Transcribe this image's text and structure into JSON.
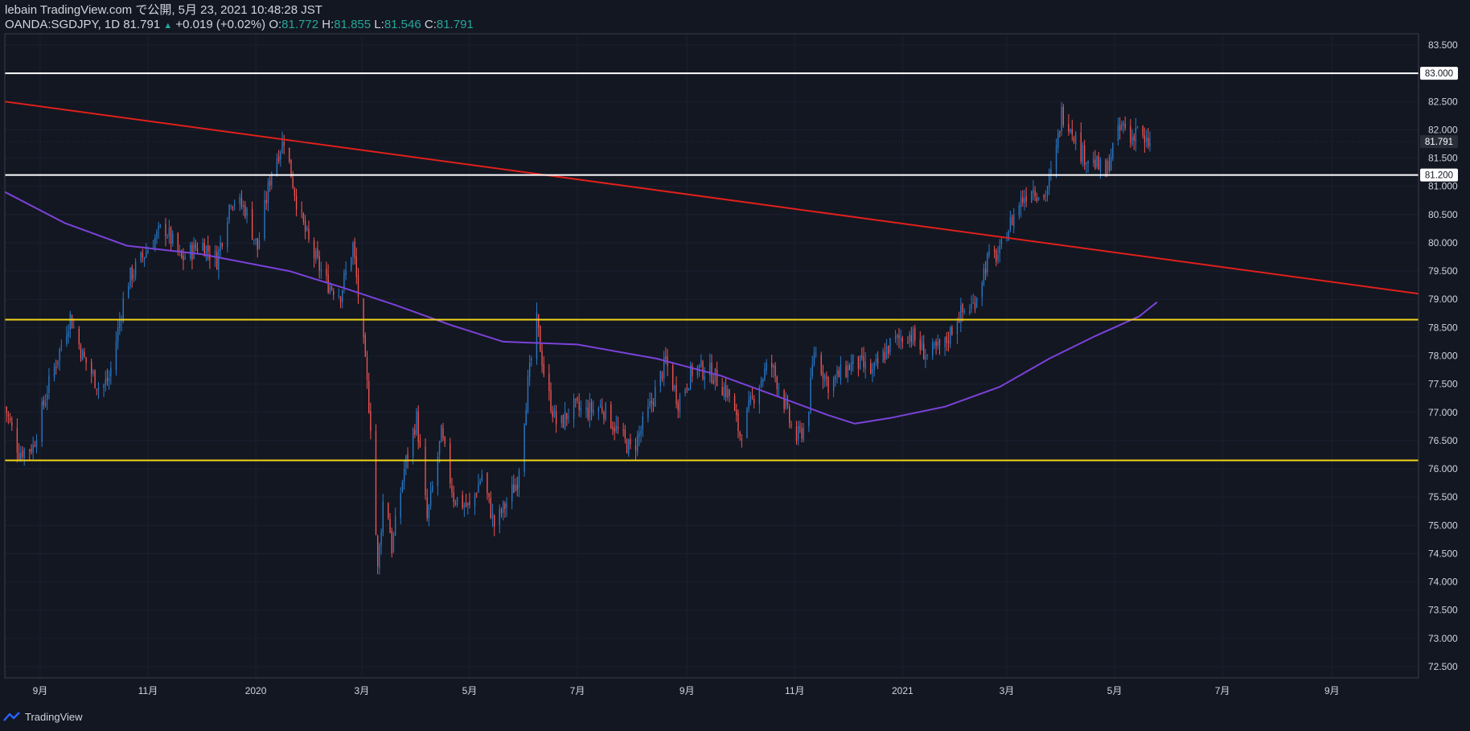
{
  "header": {
    "line1": "lebain TradingView.com で公開, 5月 23, 2021 10:48:28 JST",
    "symbol": "OANDA:SGDJPY, 1D",
    "last": "81.791",
    "change": "+0.019 (+0.02%)",
    "o_label": "O:",
    "o": "81.772",
    "h_label": "H:",
    "h": "81.855",
    "l_label": "L:",
    "l": "81.546",
    "c_label": "C:",
    "c": "81.791"
  },
  "footer": {
    "brand": "TradingView"
  },
  "colors": {
    "bg": "#131722",
    "up": "#2979c8",
    "down": "#ef5350",
    "trendline": "#e0201a",
    "support": "#f0d419",
    "resistance": "#ffffff",
    "ma": "#7b42d9",
    "axis_text": "#d1d4dc"
  },
  "chart_data": {
    "type": "candlestick",
    "symbol": "OANDA:SGDJPY",
    "timeframe": "1D",
    "ylim": [
      72.3,
      83.7
    ],
    "y_ticks": [
      "72.500",
      "73.000",
      "73.500",
      "74.000",
      "74.500",
      "75.000",
      "75.500",
      "76.000",
      "76.500",
      "77.000",
      "77.500",
      "78.000",
      "78.500",
      "79.000",
      "79.500",
      "80.000",
      "80.500",
      "81.000",
      "81.500",
      "82.000",
      "82.500",
      "83.000",
      "83.500"
    ],
    "x_ticks": [
      {
        "label": "9月",
        "date": "2019-09-01"
      },
      {
        "label": "11月",
        "date": "2019-11-01"
      },
      {
        "label": "2020",
        "date": "2020-01-01"
      },
      {
        "label": "3月",
        "date": "2020-03-01"
      },
      {
        "label": "5月",
        "date": "2020-05-01"
      },
      {
        "label": "7月",
        "date": "2020-07-01"
      },
      {
        "label": "9月",
        "date": "2020-09-01"
      },
      {
        "label": "11月",
        "date": "2020-11-01"
      },
      {
        "label": "2021",
        "date": "2021-01-01"
      },
      {
        "label": "3月",
        "date": "2021-03-01"
      },
      {
        "label": "5月",
        "date": "2021-05-01"
      },
      {
        "label": "7月",
        "date": "2021-07-01"
      },
      {
        "label": "9月",
        "date": "2021-09-01"
      }
    ],
    "x_range": [
      "2019-08-12",
      "2021-10-20"
    ],
    "price_path": [
      {
        "date": "2019-08-12",
        "close": 77.1
      },
      {
        "date": "2019-08-20",
        "close": 76.3
      },
      {
        "date": "2019-08-28",
        "close": 76.4
      },
      {
        "date": "2019-09-05",
        "close": 77.4
      },
      {
        "date": "2019-09-18",
        "close": 78.7
      },
      {
        "date": "2019-09-25",
        "close": 78.0
      },
      {
        "date": "2019-10-05",
        "close": 77.4
      },
      {
        "date": "2019-10-10",
        "close": 77.6
      },
      {
        "date": "2019-10-20",
        "close": 79.3
      },
      {
        "date": "2019-11-01",
        "close": 79.9
      },
      {
        "date": "2019-11-10",
        "close": 80.3
      },
      {
        "date": "2019-11-20",
        "close": 79.7
      },
      {
        "date": "2019-12-01",
        "close": 80.0
      },
      {
        "date": "2019-12-10",
        "close": 79.7
      },
      {
        "date": "2019-12-18",
        "close": 80.8
      },
      {
        "date": "2019-12-26",
        "close": 80.6
      },
      {
        "date": "2020-01-02",
        "close": 79.9
      },
      {
        "date": "2020-01-10",
        "close": 81.3
      },
      {
        "date": "2020-01-17",
        "close": 81.85
      },
      {
        "date": "2020-01-25",
        "close": 80.6
      },
      {
        "date": "2020-02-01",
        "close": 79.9
      },
      {
        "date": "2020-02-10",
        "close": 79.3
      },
      {
        "date": "2020-02-18",
        "close": 79.1
      },
      {
        "date": "2020-02-25",
        "close": 79.95
      },
      {
        "date": "2020-03-01",
        "close": 78.5
      },
      {
        "date": "2020-03-06",
        "close": 76.8
      },
      {
        "date": "2020-03-10",
        "close": 74.2
      },
      {
        "date": "2020-03-14",
        "close": 75.8
      },
      {
        "date": "2020-03-18",
        "close": 74.6
      },
      {
        "date": "2020-03-25",
        "close": 76.0
      },
      {
        "date": "2020-04-01",
        "close": 76.9
      },
      {
        "date": "2020-04-07",
        "close": 75.1
      },
      {
        "date": "2020-04-15",
        "close": 76.6
      },
      {
        "date": "2020-04-22",
        "close": 75.5
      },
      {
        "date": "2020-05-01",
        "close": 75.3
      },
      {
        "date": "2020-05-08",
        "close": 75.9
      },
      {
        "date": "2020-05-15",
        "close": 75.0
      },
      {
        "date": "2020-05-22",
        "close": 75.4
      },
      {
        "date": "2020-05-28",
        "close": 75.8
      },
      {
        "date": "2020-06-03",
        "close": 77.5
      },
      {
        "date": "2020-06-08",
        "close": 78.6
      },
      {
        "date": "2020-06-13",
        "close": 77.5
      },
      {
        "date": "2020-06-20",
        "close": 76.7
      },
      {
        "date": "2020-06-28",
        "close": 77.1
      },
      {
        "date": "2020-07-05",
        "close": 77.0
      },
      {
        "date": "2020-07-15",
        "close": 77.1
      },
      {
        "date": "2020-07-25",
        "close": 76.6
      },
      {
        "date": "2020-08-01",
        "close": 76.3
      },
      {
        "date": "2020-08-10",
        "close": 77.0
      },
      {
        "date": "2020-08-20",
        "close": 77.9
      },
      {
        "date": "2020-08-27",
        "close": 77.2
      },
      {
        "date": "2020-09-05",
        "close": 77.8
      },
      {
        "date": "2020-09-15",
        "close": 77.7
      },
      {
        "date": "2020-09-25",
        "close": 77.3
      },
      {
        "date": "2020-10-01",
        "close": 76.6
      },
      {
        "date": "2020-10-10",
        "close": 77.4
      },
      {
        "date": "2020-10-18",
        "close": 77.9
      },
      {
        "date": "2020-10-25",
        "close": 77.3
      },
      {
        "date": "2020-11-01",
        "close": 76.5
      },
      {
        "date": "2020-11-08",
        "close": 76.8
      },
      {
        "date": "2020-11-12",
        "close": 78.1
      },
      {
        "date": "2020-11-20",
        "close": 77.5
      },
      {
        "date": "2020-11-28",
        "close": 77.7
      },
      {
        "date": "2020-12-05",
        "close": 77.9
      },
      {
        "date": "2020-12-15",
        "close": 77.7
      },
      {
        "date": "2020-12-25",
        "close": 78.2
      },
      {
        "date": "2021-01-05",
        "close": 78.4
      },
      {
        "date": "2021-01-15",
        "close": 78.0
      },
      {
        "date": "2021-01-25",
        "close": 78.2
      },
      {
        "date": "2021-02-01",
        "close": 78.7
      },
      {
        "date": "2021-02-10",
        "close": 78.9
      },
      {
        "date": "2021-02-18",
        "close": 79.7
      },
      {
        "date": "2021-02-25",
        "close": 79.8
      },
      {
        "date": "2021-03-01",
        "close": 80.2
      },
      {
        "date": "2021-03-08",
        "close": 80.7
      },
      {
        "date": "2021-03-15",
        "close": 81.0
      },
      {
        "date": "2021-03-22",
        "close": 80.8
      },
      {
        "date": "2021-03-28",
        "close": 81.4
      },
      {
        "date": "2021-04-01",
        "close": 82.3
      },
      {
        "date": "2021-04-06",
        "close": 82.1
      },
      {
        "date": "2021-04-12",
        "close": 81.6
      },
      {
        "date": "2021-04-20",
        "close": 81.4
      },
      {
        "date": "2021-04-26",
        "close": 81.2
      },
      {
        "date": "2021-05-01",
        "close": 81.8
      },
      {
        "date": "2021-05-06",
        "close": 82.1
      },
      {
        "date": "2021-05-10",
        "close": 81.8
      },
      {
        "date": "2021-05-14",
        "close": 82.1
      },
      {
        "date": "2021-05-18",
        "close": 81.7
      },
      {
        "date": "2021-05-21",
        "close": 81.79
      }
    ],
    "moving_average": [
      {
        "date": "2019-08-12",
        "value": 80.9
      },
      {
        "date": "2019-09-15",
        "value": 80.35
      },
      {
        "date": "2019-10-20",
        "value": 79.95
      },
      {
        "date": "2019-12-01",
        "value": 79.8
      },
      {
        "date": "2020-01-20",
        "value": 79.5
      },
      {
        "date": "2020-02-20",
        "value": 79.2
      },
      {
        "date": "2020-03-20",
        "value": 78.9
      },
      {
        "date": "2020-04-20",
        "value": 78.55
      },
      {
        "date": "2020-05-20",
        "value": 78.25
      },
      {
        "date": "2020-07-01",
        "value": 78.2
      },
      {
        "date": "2020-08-15",
        "value": 77.95
      },
      {
        "date": "2020-09-20",
        "value": 77.65
      },
      {
        "date": "2020-10-25",
        "value": 77.25
      },
      {
        "date": "2020-11-20",
        "value": 76.95
      },
      {
        "date": "2020-12-05",
        "value": 76.8
      },
      {
        "date": "2020-12-25",
        "value": 76.9
      },
      {
        "date": "2021-01-25",
        "value": 77.1
      },
      {
        "date": "2021-02-25",
        "value": 77.45
      },
      {
        "date": "2021-03-25",
        "value": 77.95
      },
      {
        "date": "2021-04-20",
        "value": 78.35
      },
      {
        "date": "2021-05-15",
        "value": 78.7
      },
      {
        "date": "2021-05-25",
        "value": 78.95
      }
    ],
    "trendline": {
      "start": {
        "date": "2019-08-12",
        "price": 82.5
      },
      "end": {
        "date": "2021-10-20",
        "price": 79.1
      }
    },
    "horizontal_lines": [
      {
        "price": 83.0,
        "label": "83.000",
        "color": "#ffffff"
      },
      {
        "price": 81.2,
        "label": "81.200",
        "color": "#ffffff"
      },
      {
        "price": 78.64,
        "label": "",
        "color": "#f0d419"
      },
      {
        "price": 76.15,
        "label": "",
        "color": "#f0d419"
      }
    ],
    "last_price_label": "81.791"
  }
}
